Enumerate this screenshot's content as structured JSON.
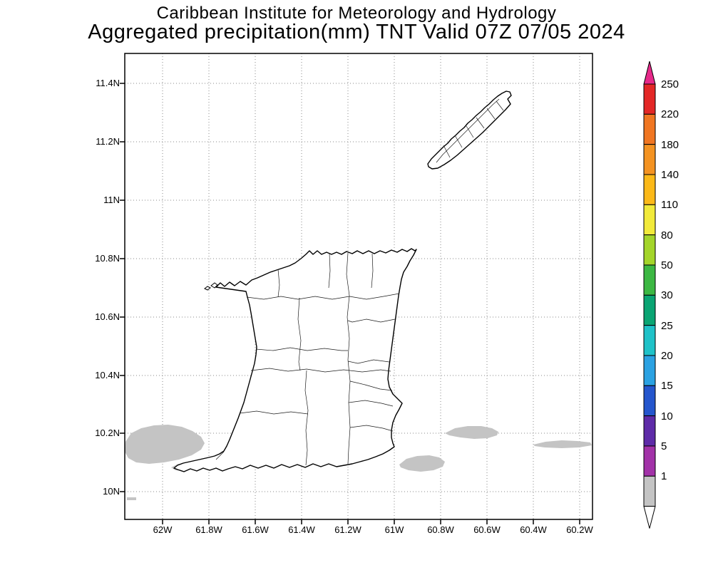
{
  "header": {
    "title_line1": "Caribbean Institute for Meteorology and Hydrology",
    "title_line2": "Aggregated precipitation(mm) TNT Valid 07Z 07/05 2024"
  },
  "axes": {
    "y_labels": [
      "11.4N",
      "11.2N",
      "11N",
      "10.8N",
      "10.6N",
      "10.4N",
      "10.2N",
      "10N"
    ],
    "x_labels": [
      "62W",
      "61.8W",
      "61.6W",
      "61.4W",
      "61.2W",
      "61W",
      "60.8W",
      "60.6W",
      "60.4W",
      "60.2W"
    ]
  },
  "map": {
    "shading_color": "#c4c4c4"
  },
  "colorbar": {
    "labels": [
      "250",
      "220",
      "180",
      "140",
      "110",
      "80",
      "50",
      "30",
      "25",
      "20",
      "15",
      "10",
      "5",
      "1"
    ],
    "segment_colors": [
      "#e32726",
      "#f07622",
      "#f49322",
      "#fcb918",
      "#f2ea3a",
      "#a4d52a",
      "#3cb843",
      "#0aa573",
      "#1fc2c8",
      "#2ba2e2",
      "#2556cd",
      "#5e2ba8",
      "#a232a8",
      "#c4c4c4"
    ],
    "arrow_top_color": "#e7298a",
    "arrow_bottom_color": "#ffffff"
  }
}
